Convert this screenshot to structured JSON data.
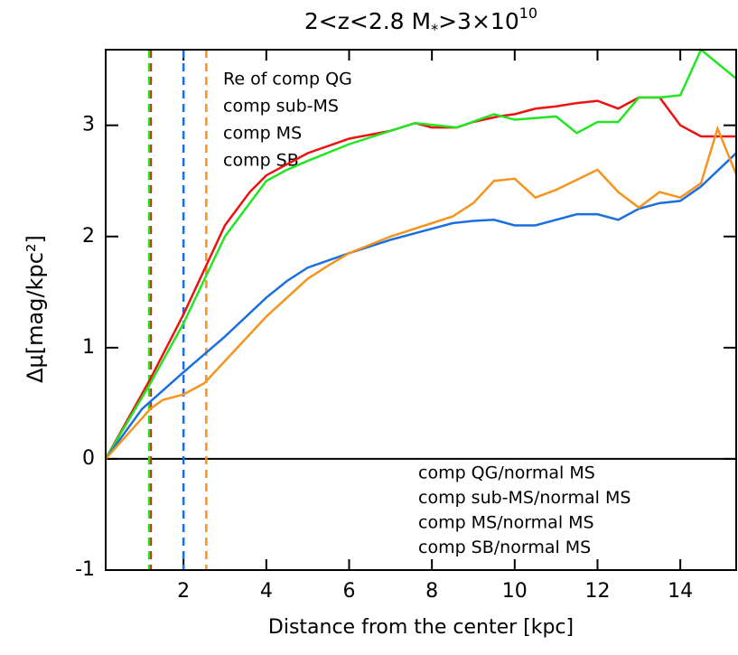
{
  "chart_data": {
    "type": "line",
    "title": {
      "text": "2<z<2.8 M",
      "sub": "*",
      "mid": ">3×10",
      "sup": "10"
    },
    "x_label": "Distance from the center [kpc]",
    "y_label": "Δμ[mag/kpc²]",
    "xlim": [
      0.12,
      15.35
    ],
    "ylim": [
      -1.0,
      3.68
    ],
    "xticks": [
      2,
      4,
      6,
      8,
      10,
      12,
      14
    ],
    "yticks": [
      -1,
      0,
      1,
      2,
      3
    ],
    "hline": 0,
    "vlines": [
      {
        "name": "Re of comp QG",
        "color": "#ee1111",
        "value": 1.21
      },
      {
        "name": "comp sub-MS",
        "color": "#22e622",
        "value": 1.17
      },
      {
        "name": "comp MS",
        "color": "#1a6ee0",
        "value": 2.0
      },
      {
        "name": "comp SB",
        "color": "#f5951f",
        "value": 2.55
      }
    ],
    "series": [
      {
        "name": "comp QG/normal MS",
        "color": "#ee1111",
        "x": [
          0.12,
          1.2,
          2,
          3,
          3.6,
          4,
          5,
          6,
          7,
          7.6,
          8,
          8.6,
          9,
          9.6,
          10,
          10.5,
          11,
          11.5,
          12,
          12.5,
          13,
          13.5,
          14,
          14.5,
          15,
          15.35
        ],
        "values": [
          0,
          0.72,
          1.3,
          2.1,
          2.4,
          2.55,
          2.75,
          2.88,
          2.95,
          3.02,
          2.98,
          2.98,
          3.03,
          3.08,
          3.1,
          3.15,
          3.17,
          3.2,
          3.22,
          3.15,
          3.25,
          3.25,
          3.0,
          2.9,
          2.9,
          2.9
        ]
      },
      {
        "name": "comp sub-MS/normal MS",
        "color": "#22e622",
        "x": [
          0.12,
          1.2,
          2,
          3,
          3.6,
          4,
          4.5,
          5,
          6,
          7,
          7.6,
          8.6,
          9.5,
          10,
          11,
          11.5,
          12,
          12.5,
          13,
          13.5,
          14,
          14.5,
          15.35
        ],
        "values": [
          0,
          0.68,
          1.22,
          2.0,
          2.3,
          2.5,
          2.6,
          2.68,
          2.83,
          2.95,
          3.02,
          2.98,
          3.1,
          3.05,
          3.08,
          2.93,
          3.03,
          3.03,
          3.25,
          3.25,
          3.27,
          3.68,
          3.42
        ]
      },
      {
        "name": "comp MS/normal MS",
        "color": "#1a6ee0",
        "x": [
          0.12,
          1,
          2,
          3,
          4,
          4.5,
          5,
          6,
          7,
          8,
          8.5,
          9,
          9.5,
          10,
          10.5,
          11,
          11.5,
          12,
          12.5,
          13,
          13.5,
          14,
          14.5,
          15.35
        ],
        "values": [
          0,
          0.45,
          0.78,
          1.1,
          1.45,
          1.6,
          1.72,
          1.85,
          1.97,
          2.07,
          2.12,
          2.14,
          2.15,
          2.1,
          2.1,
          2.15,
          2.2,
          2.2,
          2.15,
          2.25,
          2.3,
          2.32,
          2.45,
          2.75
        ]
      },
      {
        "name": "comp SB/normal MS",
        "color": "#f5951f",
        "x": [
          0.12,
          1.2,
          1.5,
          2,
          2.5,
          3,
          4,
          4.5,
          5,
          5.5,
          6,
          7,
          8,
          8.5,
          9,
          9.5,
          10,
          10.5,
          11,
          12,
          12.5,
          13,
          13.5,
          14,
          14.5,
          14.9,
          15.35
        ],
        "values": [
          0,
          0.45,
          0.53,
          0.58,
          0.68,
          0.88,
          1.28,
          1.45,
          1.62,
          1.74,
          1.85,
          2.0,
          2.12,
          2.18,
          2.3,
          2.5,
          2.52,
          2.35,
          2.42,
          2.6,
          2.4,
          2.26,
          2.4,
          2.35,
          2.48,
          2.97,
          2.56
        ]
      }
    ]
  }
}
